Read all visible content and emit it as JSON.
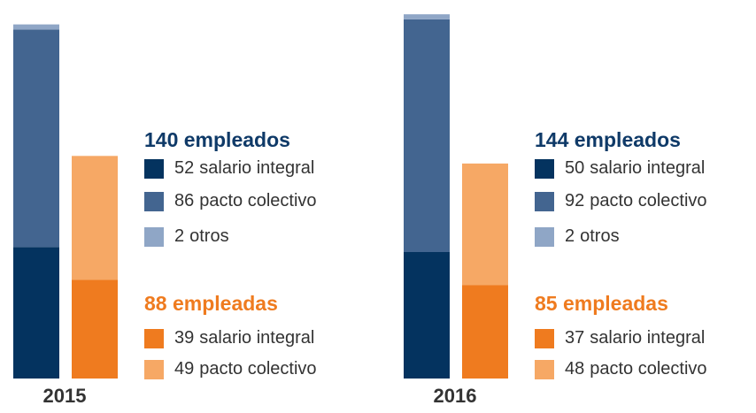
{
  "chart_data": [
    {
      "type": "bar",
      "title": "2015",
      "ylim": [
        0,
        150
      ],
      "groups": [
        {
          "label": "140 empleados",
          "color": "#0f3a68",
          "series": [
            {
              "name": "salario integral",
              "value": 52,
              "color": "#04335f"
            },
            {
              "name": "pacto colectivo",
              "value": 86,
              "color": "#436590"
            },
            {
              "name": "otros",
              "value": 2,
              "color": "#8fa6c6"
            }
          ]
        },
        {
          "label": "88 empleadas",
          "color": "#ef7b1f",
          "series": [
            {
              "name": "salario integral",
              "value": 39,
              "color": "#ef7b1f"
            },
            {
              "name": "pacto colectivo",
              "value": 49,
              "color": "#f6a865"
            }
          ]
        }
      ]
    },
    {
      "type": "bar",
      "title": "2016",
      "ylim": [
        0,
        150
      ],
      "groups": [
        {
          "label": "144 empleados",
          "color": "#0f3a68",
          "series": [
            {
              "name": "salario integral",
              "value": 50,
              "color": "#04335f"
            },
            {
              "name": "pacto colectivo",
              "value": 92,
              "color": "#436590"
            },
            {
              "name": "otros",
              "value": 2,
              "color": "#8fa6c6"
            }
          ]
        },
        {
          "label": "85 empleadas",
          "color": "#ef7b1f",
          "series": [
            {
              "name": "salario integral",
              "value": 37,
              "color": "#ef7b1f"
            },
            {
              "name": "pacto colectivo",
              "value": 48,
              "color": "#f6a865"
            }
          ]
        }
      ]
    }
  ]
}
